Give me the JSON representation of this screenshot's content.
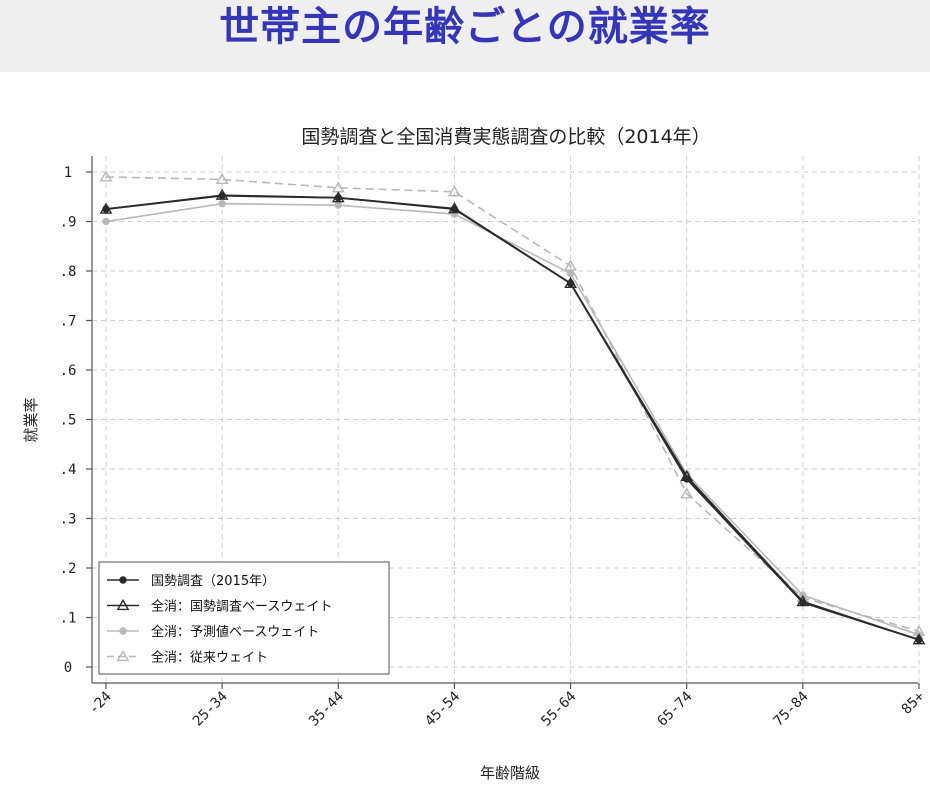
{
  "page": {
    "banner_title": "世帯主の年齢ごとの就業率",
    "banner_color": "#3535b8",
    "banner_bg": "#efefef"
  },
  "chart_data": {
    "type": "line",
    "title": "国勢調査と全国消費実態調査の比較（2014年）",
    "xlabel": "年齢階級",
    "ylabel": "就業率",
    "categories": [
      "-24",
      "25-34",
      "35-44",
      "45-54",
      "55-64",
      "65-74",
      "75-84",
      "85+"
    ],
    "ylim": [
      0,
      1
    ],
    "yticks": [
      0,
      0.1,
      0.2,
      0.3,
      0.4,
      0.5,
      0.6,
      0.7,
      0.8,
      0.9,
      1
    ],
    "ytick_labels": [
      "0",
      ".1",
      ".2",
      ".3",
      ".4",
      ".5",
      ".6",
      ".7",
      ".8",
      ".9",
      "1"
    ],
    "grid": true,
    "legend_position": "bottom-left",
    "series": [
      {
        "name": "国勢調査（2015年）",
        "values": [
          0.925,
          0.952,
          0.948,
          0.925,
          0.775,
          0.38,
          0.13,
          0.055
        ],
        "color": "#2b2b2b",
        "marker": "circle",
        "dash": "solid"
      },
      {
        "name": "全消：国勢調査ベースウェイト",
        "values": [
          0.925,
          0.953,
          0.948,
          0.926,
          0.775,
          0.385,
          0.132,
          0.055
        ],
        "color": "#2b2b2b",
        "marker": "triangle",
        "dash": "solid"
      },
      {
        "name": "全消：予測値ベースウェイト",
        "values": [
          0.9,
          0.936,
          0.933,
          0.915,
          0.795,
          0.39,
          0.145,
          0.065
        ],
        "color": "#b8b8b8",
        "marker": "circle",
        "dash": "solid"
      },
      {
        "name": "全消：従来ウェイト",
        "values": [
          0.99,
          0.985,
          0.968,
          0.96,
          0.81,
          0.35,
          0.14,
          0.072
        ],
        "color": "#b8b8b8",
        "marker": "triangle",
        "dash": "dashed"
      }
    ]
  }
}
